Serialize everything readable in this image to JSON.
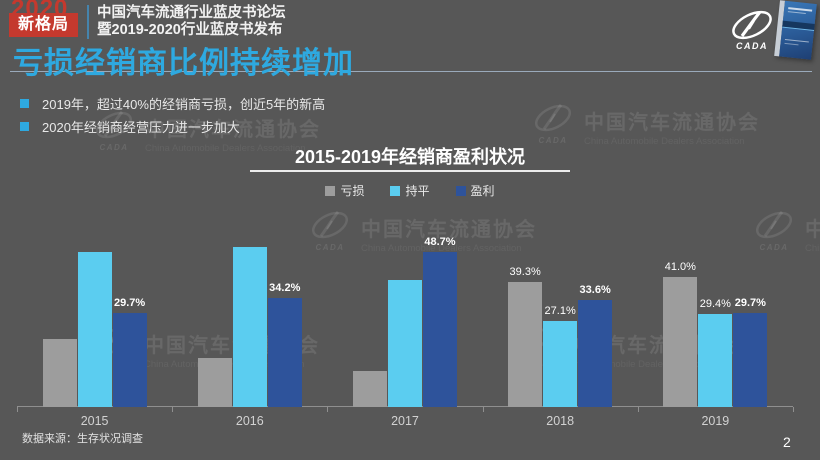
{
  "header": {
    "logo": {
      "year": "2020",
      "badge": "新格局"
    },
    "forum_line1": "中国汽车流通行业蓝皮书论坛",
    "forum_line2": "暨2019-2020行业蓝皮书发布",
    "cada_caption": "CADA"
  },
  "slide": {
    "title": "亏损经销商比例持续增加",
    "bullets": [
      "2019年，超过40%的经销商亏损，创近5年的新高",
      "2020年经销商经营压力进一步加大"
    ],
    "source": "数据来源：生存状况调查",
    "page_number": "2"
  },
  "watermark": {
    "text": "中国汽车流通协会",
    "subtext": "China Automobile Dealers Association",
    "logo_caption": "CADA"
  },
  "chart_data": {
    "type": "bar",
    "title": "2015-2019年经销商盈利状况",
    "categories": [
      "2015",
      "2016",
      "2017",
      "2018",
      "2019"
    ],
    "series": [
      {
        "name": "亏损",
        "color": "#9d9d9d",
        "values": [
          21.5,
          15.4,
          11.4,
          39.3,
          41.0
        ],
        "labels": [
          "",
          "",
          "",
          "39.3%",
          "41.0%"
        ],
        "bold_labels": false
      },
      {
        "name": "持平",
        "color": "#5bcdf0",
        "values": [
          48.8,
          50.4,
          39.9,
          27.1,
          29.4
        ],
        "labels": [
          "",
          "",
          "",
          "27.1%",
          "29.4%"
        ],
        "bold_labels": false
      },
      {
        "name": "盈利",
        "color": "#2e539b",
        "values": [
          29.7,
          34.2,
          48.7,
          33.6,
          29.7
        ],
        "labels": [
          "29.7%",
          "34.2%",
          "48.7%",
          "33.6%",
          "29.7%"
        ],
        "bold_labels": true
      }
    ],
    "unit": "%",
    "ylim": [
      0,
      55
    ],
    "grid": false,
    "legend_position": "top",
    "xlabel": "",
    "ylabel": ""
  }
}
